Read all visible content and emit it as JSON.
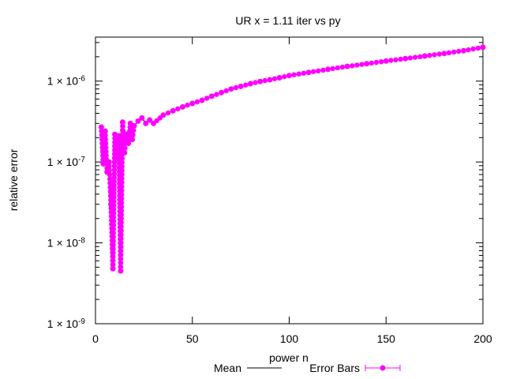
{
  "chart_data": {
    "type": "line",
    "title": "UR x = 1.11 iter vs py",
    "xlabel": "power n",
    "ylabel": "relative error",
    "xlim": [
      0,
      200
    ],
    "ylim": [
      1e-09,
      3.5e-06
    ],
    "yscale": "log",
    "x_ticks": [
      0,
      50,
      100,
      150,
      200
    ],
    "x_tick_labels": [
      "0",
      "50",
      "100",
      "150",
      "200"
    ],
    "y_ticks": [
      1e-09,
      1e-08,
      1e-07,
      1e-06
    ],
    "y_tick_labels": [
      {
        "mantissa": "1 × 10",
        "exp": "-9"
      },
      {
        "mantissa": "1 × 10",
        "exp": "-8"
      },
      {
        "mantissa": "1 × 10",
        "exp": "-7"
      },
      {
        "mantissa": "1 × 10",
        "exp": "-6"
      }
    ],
    "grid": false,
    "legend_position": "bottom",
    "series": [
      {
        "name": "Mean",
        "color": "#000000",
        "style": "line"
      },
      {
        "name": "Error Bars",
        "color": "#ff00ff",
        "style": "errorbar-points"
      }
    ],
    "x": [
      3,
      4,
      5,
      6,
      7,
      8,
      9,
      10,
      11,
      12,
      13,
      14,
      15,
      16,
      17,
      18,
      19,
      20,
      22,
      24,
      26,
      28,
      30,
      35,
      40,
      45,
      50,
      55,
      60,
      65,
      70,
      75,
      80,
      85,
      90,
      95,
      100,
      110,
      120,
      130,
      140,
      150,
      160,
      170,
      180,
      190,
      200
    ],
    "y": [
      2.7e-07,
      9.5e-08,
      2.4e-07,
      7.5e-08,
      1e-07,
      3e-08,
      4.8e-09,
      2.2e-07,
      1.1e-07,
      2.1e-07,
      4.5e-09,
      3.1e-07,
      1.3e-07,
      2.2e-07,
      1.7e-07,
      3e-07,
      1.9e-07,
      2.8e-07,
      3.2e-07,
      3.5e-07,
      3e-07,
      3.3e-07,
      3e-07,
      3.8e-07,
      4.3e-07,
      4.8e-07,
      5.3e-07,
      5.8e-07,
      6.5e-07,
      7.2e-07,
      8e-07,
      8.6e-07,
      9.3e-07,
      9.9e-07,
      1.04e-06,
      1.1e-06,
      1.17e-06,
      1.28e-06,
      1.4e-06,
      1.52e-06,
      1.64e-06,
      1.77e-06,
      1.9e-06,
      2.04e-06,
      2.2e-06,
      2.38e-06,
      2.62e-06
    ]
  }
}
